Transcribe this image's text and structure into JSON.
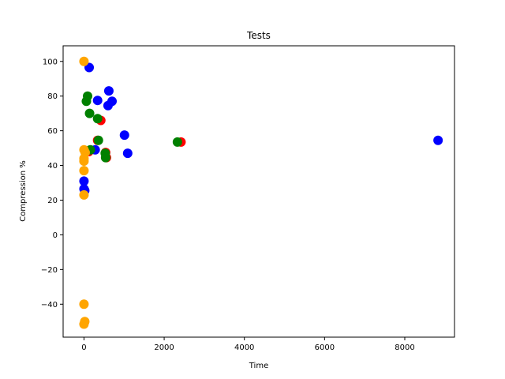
{
  "chart_data": {
    "type": "scatter",
    "title": "Tests",
    "xlabel": "Time",
    "ylabel": "Compression %",
    "xlim": [
      -520,
      9240
    ],
    "ylim": [
      -59,
      109
    ],
    "xticks": [
      0,
      2000,
      4000,
      6000,
      8000
    ],
    "yticks": [
      -40,
      -20,
      0,
      20,
      40,
      60,
      80,
      100
    ],
    "grid": false,
    "series": [
      {
        "color": "#ff0000",
        "points": [
          [
            2420,
            53.5
          ],
          [
            420,
            66
          ],
          [
            340,
            54.5
          ],
          [
            540,
            47.5
          ],
          [
            560,
            44.5
          ],
          [
            120,
            48
          ]
        ]
      },
      {
        "color": "#0000ff",
        "points": [
          [
            130,
            96.5
          ],
          [
            620,
            83
          ],
          [
            340,
            77.5
          ],
          [
            700,
            77
          ],
          [
            600,
            74.5
          ],
          [
            1010,
            57.5
          ],
          [
            1090,
            47
          ],
          [
            280,
            49
          ],
          [
            8830,
            54.5
          ],
          [
            0,
            31
          ],
          [
            0,
            26.5
          ],
          [
            20,
            25.5
          ]
        ]
      },
      {
        "color": "#008000",
        "points": [
          [
            90,
            80
          ],
          [
            60,
            77
          ],
          [
            140,
            70
          ],
          [
            340,
            67
          ],
          [
            360,
            54.5
          ],
          [
            530,
            47
          ],
          [
            540,
            44.5
          ],
          [
            2330,
            53.5
          ],
          [
            160,
            49
          ]
        ]
      },
      {
        "color": "#ffa500",
        "points": [
          [
            0,
            100
          ],
          [
            0,
            49
          ],
          [
            30,
            47.5
          ],
          [
            0,
            44
          ],
          [
            0,
            42.5
          ],
          [
            0,
            37
          ],
          [
            0,
            23
          ],
          [
            0,
            -40
          ],
          [
            20,
            -50
          ],
          [
            0,
            -51.5
          ]
        ]
      }
    ]
  }
}
